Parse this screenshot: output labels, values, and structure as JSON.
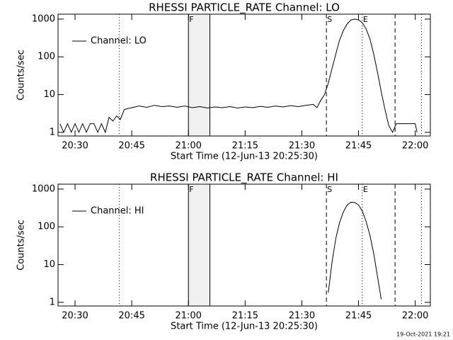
{
  "chart_data": [
    {
      "type": "line",
      "title": "RHESSI PARTICLE_RATE Channel: LO",
      "xlabel": "Start Time (12-Jun-13 20:25:30)",
      "ylabel": "Counts/sec",
      "log_y": true,
      "legend": "top-left",
      "x": [
        "20:26:00",
        "20:27:00",
        "20:28:00",
        "20:29:00",
        "20:30:00",
        "20:31:00",
        "20:32:00",
        "20:33:00",
        "20:34:00",
        "20:35:00",
        "20:36:00",
        "20:37:00",
        "20:38:00",
        "20:39:00",
        "20:40:00",
        "20:41:00",
        "20:42:00",
        "20:43:00",
        "20:45:00",
        "20:47:00",
        "20:49:00",
        "20:51:00",
        "20:53:00",
        "20:55:00",
        "20:57:00",
        "20:59:00",
        "21:01:00",
        "21:03:00",
        "21:05:00",
        "21:07:00",
        "21:09:00",
        "21:11:00",
        "21:13:00",
        "21:15:00",
        "21:17:00",
        "21:19:00",
        "21:21:00",
        "21:23:00",
        "21:25:00",
        "21:27:00",
        "21:29:00",
        "21:31:00",
        "21:33:00",
        "21:34:00",
        "21:35:00",
        "21:36:00",
        "21:37:00",
        "21:38:00",
        "21:39:00",
        "21:40:00",
        "21:41:00",
        "21:42:00",
        "21:43:00",
        "21:44:00",
        "21:45:00",
        "21:46:00",
        "21:47:00",
        "21:48:00",
        "21:49:00",
        "21:50:00",
        "21:51:00",
        "21:52:00",
        "21:53:00",
        "21:54:00",
        "21:55:00",
        "21:56:00",
        "21:57:00",
        "21:58:00",
        "21:59:00",
        "22:00:00",
        "22:00:30"
      ],
      "series": [
        {
          "name": "Channel: LO",
          "color": "#000000",
          "values": [
            1.7,
            1,
            1.7,
            1,
            1.7,
            1,
            1.7,
            1,
            1.7,
            1.7,
            1,
            1.7,
            1,
            2.5,
            2,
            2.7,
            2.2,
            4,
            4.5,
            5,
            4.6,
            5.2,
            4.8,
            5,
            4.6,
            5,
            4.5,
            4.8,
            4.4,
            4.7,
            4.5,
            4.8,
            4.4,
            4.7,
            4.5,
            4.9,
            4.6,
            5,
            4.7,
            5.1,
            4.8,
            5.2,
            5.5,
            4.5,
            7,
            10,
            20,
            50,
            120,
            280,
            500,
            750,
            950,
            1000,
            950,
            800,
            550,
            300,
            120,
            40,
            12,
            4,
            1.5,
            1,
            1.7,
            1.7,
            1.7,
            1.7,
            1.7,
            1.7,
            1
          ]
        }
      ],
      "xlim": [
        "20:25:30",
        "22:04:00"
      ],
      "xticks": [
        "20:30",
        "20:45",
        "21:00",
        "21:15",
        "21:30",
        "21:45",
        "22:00"
      ],
      "ylim": [
        0.8,
        1350
      ],
      "yticks": [
        1,
        10,
        100,
        1000
      ],
      "shaded_range": [
        "21:00:00",
        "21:05:40"
      ],
      "markers": [
        {
          "x": "20:41:40",
          "style": "dotted"
        },
        {
          "x": "21:00:00",
          "style": "solid",
          "label": "F"
        },
        {
          "x": "21:05:40",
          "style": "solid"
        },
        {
          "x": "21:36:30",
          "style": "dashed",
          "label": "S"
        },
        {
          "x": "21:46:00",
          "style": "dotted",
          "label": "E"
        },
        {
          "x": "21:54:40",
          "style": "dashed"
        },
        {
          "x": "22:01:40",
          "style": "dotted"
        }
      ]
    },
    {
      "type": "line",
      "title": "RHESSI PARTICLE_RATE Channel: HI",
      "xlabel": "Start Time (12-Jun-13 20:25:30)",
      "ylabel": "Counts/sec",
      "log_y": true,
      "legend": "top-left",
      "x": [
        "21:37:00",
        "21:38:00",
        "21:39:00",
        "21:40:00",
        "21:41:00",
        "21:42:00",
        "21:43:00",
        "21:44:00",
        "21:45:00",
        "21:46:00",
        "21:47:00",
        "21:48:00",
        "21:49:00",
        "21:50:00",
        "21:51:00"
      ],
      "series": [
        {
          "name": "Channel: HI",
          "color": "#000000",
          "values": [
            1.8,
            12,
            50,
            130,
            250,
            380,
            450,
            440,
            380,
            260,
            140,
            60,
            20,
            5,
            1.2
          ]
        }
      ],
      "xlim": [
        "20:25:30",
        "22:04:00"
      ],
      "xticks": [
        "20:30",
        "20:45",
        "21:00",
        "21:15",
        "21:30",
        "21:45",
        "22:00"
      ],
      "ylim": [
        0.8,
        1350
      ],
      "yticks": [
        1,
        10,
        100,
        1000
      ],
      "shaded_range": [
        "21:00:00",
        "21:05:40"
      ],
      "markers": [
        {
          "x": "20:41:40",
          "style": "dotted"
        },
        {
          "x": "21:00:00",
          "style": "solid",
          "label": "F"
        },
        {
          "x": "21:05:40",
          "style": "solid"
        },
        {
          "x": "21:36:30",
          "style": "dashed",
          "label": "S"
        },
        {
          "x": "21:46:00",
          "style": "dotted",
          "label": "E"
        },
        {
          "x": "21:54:40",
          "style": "dashed"
        },
        {
          "x": "22:01:40",
          "style": "dotted"
        }
      ]
    }
  ],
  "footer": "19-Oct-2021 19:21"
}
